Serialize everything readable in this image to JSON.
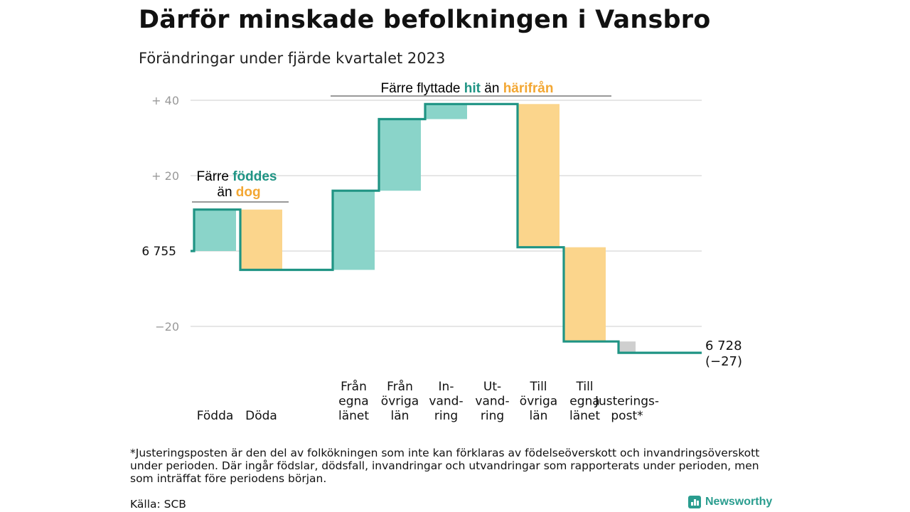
{
  "title": "Därför minskade befolkningen i Vansbro",
  "subtitle": "Förändringar under fjärde kvartalet 2023",
  "chart_data": {
    "type": "waterfall",
    "start_label": "6  755",
    "start_value": 6755,
    "end_value_label": "6 728",
    "end_change_label": "(−27)",
    "y_ticks": [
      {
        "value": 40,
        "label": "+  40"
      },
      {
        "value": 20,
        "label": "+  20"
      },
      {
        "value": -20,
        "label": "−20"
      }
    ],
    "steps": [
      {
        "label": [
          "Födda"
        ],
        "change": 11,
        "kind": "inflow"
      },
      {
        "label": [
          "Döda"
        ],
        "change": -16,
        "kind": "outflow"
      },
      {
        "label": [
          "Från",
          "egna",
          "länet"
        ],
        "change": 21,
        "kind": "inflow"
      },
      {
        "label": [
          "Från",
          "övriga",
          "län"
        ],
        "change": 19,
        "kind": "inflow"
      },
      {
        "label": [
          "In-",
          "vand-",
          "ring"
        ],
        "change": 4,
        "kind": "inflow"
      },
      {
        "label": [
          "Ut-",
          "vand-",
          "ring"
        ],
        "change": 0,
        "kind": "outflow"
      },
      {
        "label": [
          "Till",
          "övriga",
          "län"
        ],
        "change": -38,
        "kind": "outflow"
      },
      {
        "label": [
          "Till",
          "egna",
          "länet"
        ],
        "change": -25,
        "kind": "outflow"
      },
      {
        "label": [
          "Justerings-",
          "post*"
        ],
        "change": -3,
        "kind": "adjustment"
      }
    ],
    "annotations": {
      "births": {
        "line1": "Färre",
        "word1": "föddes",
        "line2": "än",
        "word2": "dog"
      },
      "migration": {
        "prefix": "Färre flyttade",
        "word1": "hit",
        "middle": "än",
        "word2": "härifrån"
      }
    },
    "colors": {
      "inflow": "#8ad4c9",
      "outflow": "#fbd58c",
      "adjustment": "#cfcfcf",
      "line": "#1f9484",
      "teal_text": "#1f9484",
      "orange_text": "#f3a733",
      "grid": "#dddddd"
    }
  },
  "footnote": "*Justeringsposten är den del av folkökningen som inte kan förklaras av födelseöverskott och invandringsöverskott under perioden. Där ingår födslar, dödsfall, invandringar och utvandringar som rapporterats under perioden, men som inträffat före periodens början.",
  "source": "Källa: SCB",
  "brand": "Newsworthy"
}
